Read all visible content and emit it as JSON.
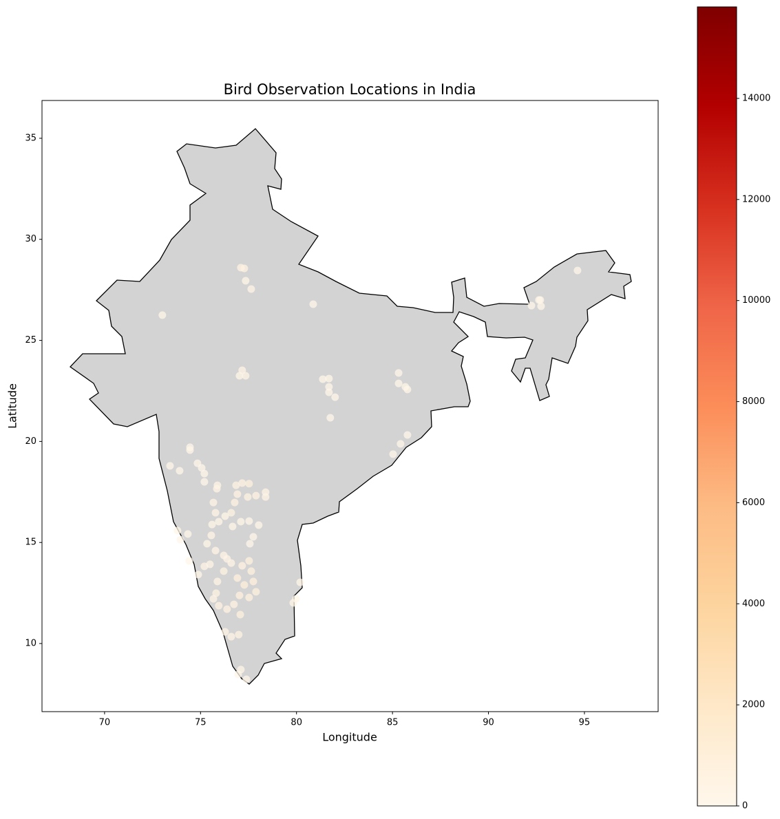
{
  "chart_data": {
    "type": "scatter",
    "title": "Bird Observation Locations in India",
    "xlabel": "Longitude",
    "ylabel": "Latitude",
    "xlim": [
      66.74,
      98.84
    ],
    "ylim": [
      6.63,
      36.87
    ],
    "xticks": [
      70,
      75,
      80,
      85,
      90,
      95
    ],
    "yticks": [
      10,
      15,
      20,
      25,
      30,
      35
    ],
    "cmap": "OrRd",
    "clim": [
      0,
      15811
    ],
    "cticks": [
      0,
      2000,
      4000,
      6000,
      8000,
      10000,
      12000,
      14000
    ],
    "x": [
      77.1,
      77.28,
      77.35,
      77.64,
      73.01,
      80.87,
      77.17,
      77.35,
      77.03,
      81.37,
      81.69,
      81.69,
      81.69,
      82.01,
      81.76,
      85.32,
      85.32,
      85.67,
      85.78,
      85.78,
      85.42,
      85.03,
      74.45,
      74.45,
      73.41,
      73.91,
      74.84,
      75.06,
      75.2,
      75.2,
      75.88,
      75.85,
      76.85,
      77.17,
      77.53,
      77.89,
      77.46,
      78.39,
      78.39,
      76.92,
      76.78,
      76.6,
      75.67,
      75.78,
      75.95,
      76.28,
      77.1,
      77.53,
      78.03,
      76.67,
      77.75,
      77.57,
      75.6,
      75.56,
      75.34,
      73.8,
      73.95,
      74.34,
      75.78,
      76.21,
      76.38,
      76.6,
      77.17,
      77.53,
      77.64,
      77.75,
      77.89,
      77.53,
      76.92,
      77.28,
      77.03,
      76.74,
      76.21,
      75.88,
      75.2,
      75.49,
      74.41,
      74.88,
      75.81,
      75.95,
      76.38,
      77.07,
      75.67,
      76.28,
      76.6,
      76.99,
      77.1,
      76.96,
      77.39,
      79.83,
      79.97,
      80.19,
      92.24,
      92.63,
      92.74,
      94.64,
      92.7
    ],
    "y": [
      28.6,
      28.56,
      27.95,
      27.54,
      26.25,
      26.79,
      23.52,
      23.25,
      23.25,
      23.08,
      23.11,
      22.7,
      22.43,
      22.19,
      21.17,
      23.39,
      22.87,
      22.7,
      22.57,
      20.32,
      19.88,
      19.37,
      19.71,
      19.57,
      18.79,
      18.55,
      18.92,
      18.69,
      18.41,
      18.0,
      17.83,
      17.66,
      17.83,
      17.94,
      17.91,
      17.32,
      17.25,
      17.49,
      17.25,
      17.39,
      16.98,
      16.47,
      16.98,
      16.47,
      16.03,
      16.3,
      16.03,
      16.06,
      15.86,
      15.79,
      15.28,
      14.94,
      15.89,
      15.35,
      14.94,
      15.59,
      15.14,
      15.42,
      14.6,
      14.36,
      14.19,
      13.98,
      13.85,
      14.09,
      13.58,
      13.07,
      12.56,
      12.28,
      13.24,
      12.9,
      12.38,
      11.94,
      13.58,
      13.07,
      13.82,
      13.92,
      14.09,
      13.41,
      12.49,
      11.87,
      11.7,
      11.43,
      12.21,
      10.58,
      10.34,
      10.44,
      8.71,
      8.47,
      8.23,
      12.01,
      12.21,
      13.03,
      26.72,
      27.0,
      26.69,
      28.46,
      27.0
    ],
    "values": [
      620,
      540,
      300,
      410,
      250,
      180,
      390,
      330,
      280,
      220,
      260,
      190,
      170,
      150,
      120,
      240,
      200,
      310,
      270,
      160,
      140,
      110,
      230,
      210,
      180,
      200,
      170,
      150,
      140,
      130,
      420,
      380,
      510,
      640,
      720,
      560,
      480,
      450,
      400,
      530,
      610,
      470,
      350,
      330,
      300,
      290,
      260,
      240,
      220,
      280,
      200,
      180,
      310,
      350,
      300,
      260,
      230,
      210,
      330,
      370,
      390,
      450,
      680,
      740,
      820,
      900,
      760,
      810,
      870,
      950,
      890,
      620,
      500,
      430,
      380,
      360,
      240,
      260,
      480,
      540,
      600,
      700,
      420,
      390,
      450,
      480,
      260,
      230,
      210,
      300,
      280,
      260,
      190,
      220,
      200,
      150,
      240
    ]
  }
}
